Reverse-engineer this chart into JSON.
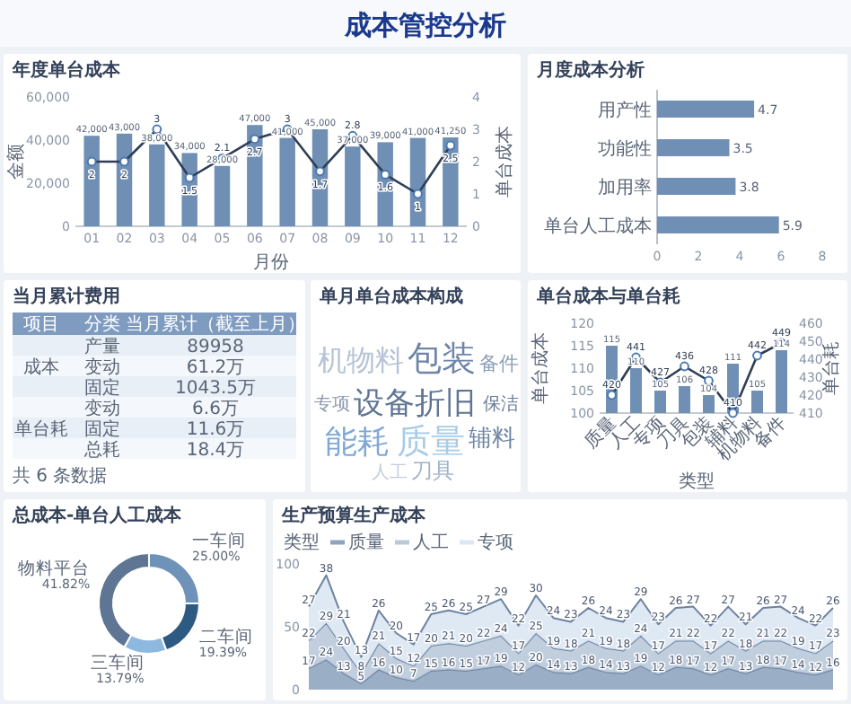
{
  "chart_data": [
    {
      "type": "bar",
      "title": "年度单台成本",
      "annotations": [
        "成本管控分析"
      ],
      "xlabel": "月份",
      "ylabel": "金额",
      "y2label": "单台成本",
      "categories": [
        "01",
        "02",
        "03",
        "04",
        "05",
        "06",
        "07",
        "08",
        "09",
        "10",
        "11",
        "12"
      ],
      "ylim": [
        0,
        60000
      ],
      "yticks": [
        0,
        {
          "value": 20000,
          "label": "20,000"
        },
        {
          "value": 40000,
          "label": "40,000"
        },
        {
          "value": 60000,
          "label": "60,000"
        }
      ],
      "y2lim": [
        0,
        4
      ],
      "y2ticks": [
        0,
        1,
        2,
        3,
        4
      ],
      "data_labels": true,
      "series": [
        {
          "type": "bar",
          "color": "#6f8fb5",
          "values": [
            42000,
            43000,
            38000,
            34000,
            28000,
            47000,
            41000,
            45000,
            37000,
            39000,
            41000,
            41250
          ],
          "value_labels": [
            "42,000",
            "43,000",
            "38,000",
            "34,000",
            "28,000",
            "47,000",
            "41,000",
            "45,000",
            "37,000",
            "39,000",
            "41,000",
            "41,250"
          ]
        },
        {
          "type": "line",
          "axis": "y2",
          "color": "#2f3e55",
          "marker": "circle",
          "values": [
            2,
            2,
            3,
            1.5,
            2.1,
            2.7,
            3,
            1.7,
            2.8,
            1.6,
            1,
            2.5
          ],
          "value_labels": [
            "2",
            "2",
            "3",
            "1.5",
            "2.1",
            "2.7",
            "3",
            "1.7",
            "2.8",
            "1.6",
            "1",
            "2.5"
          ]
        }
      ]
    },
    {
      "type": "bar",
      "orientation": "horizontal",
      "title": "月度成本分析",
      "categories": [
        "用产性",
        "功能性",
        "加用率",
        "单台人工成本"
      ],
      "values": [
        4.7,
        3.5,
        3.8,
        5.9
      ],
      "color": "#6f8fb5",
      "xlim": [
        0,
        8
      ],
      "xticks": [
        0,
        2,
        4,
        6,
        8
      ],
      "data_labels": true
    },
    {
      "type": "other",
      "title": "当月累计费用",
      "annotations": [
        "项目",
        "分类",
        "当月累计（截至上月）",
        "成本",
        "产量",
        "89958",
        "变动",
        "61.2万",
        "固定",
        "1043.5万",
        "单台耗",
        "变动",
        "6.6万",
        "固定",
        "11.6万",
        "总耗",
        "18.4万",
        "共 6 条数据"
      ]
    },
    {
      "type": "other",
      "title": "单月单台成本构成",
      "annotations": [
        "机物料",
        "包装",
        "备件",
        "专项",
        "设备折旧",
        "保洁",
        "能耗",
        "质量",
        "辅料",
        "人工",
        "刀具"
      ]
    },
    {
      "type": "bar",
      "title": "单台成本与单台耗",
      "xlabel": "类型",
      "ylabel": "单台成本",
      "y2label": "单台耗",
      "categories": [
        "质量",
        "人工",
        "专项",
        "刀具",
        "包装",
        "辅料",
        "机物料",
        "备件"
      ],
      "ylim": [
        100,
        120
      ],
      "yticks": [
        100,
        105,
        110,
        115,
        120
      ],
      "y2lim": [
        410,
        460
      ],
      "y2ticks": [
        410,
        420,
        430,
        440,
        450,
        460
      ],
      "data_labels": true,
      "series": [
        {
          "type": "bar",
          "color": "#6f8fb5",
          "values": [
            115,
            110,
            105,
            106,
            104,
            111,
            105,
            114
          ]
        },
        {
          "type": "line",
          "axis": "y2",
          "color": "#2f3e55",
          "marker": "circle",
          "values": [
            420,
            441,
            427,
            436,
            428,
            410,
            442,
            449
          ]
        }
      ]
    },
    {
      "type": "donut",
      "title": "总成本-单台人工成本",
      "categories": [
        "一车间",
        "二车间",
        "三车间",
        "物料平台"
      ],
      "values": [
        25,
        19.39,
        13.79,
        41.82
      ],
      "colors": [
        "#6f92b8",
        "#2d5a80",
        "#8db9e0",
        "#5f7594"
      ],
      "data_labels": true,
      "value_labels": [
        "25.00%",
        "19.39%",
        "13.79%",
        "41.82%"
      ]
    },
    {
      "type": "area",
      "title": "生产预算生产成本",
      "stacked": true,
      "legend": "top left",
      "legend_title": "类型",
      "categories": [
        null,
        null,
        null,
        null,
        null,
        null,
        null,
        null,
        null,
        null,
        null,
        null,
        null,
        null,
        null,
        null,
        null,
        null,
        null,
        null,
        null,
        null,
        null,
        null,
        null,
        null,
        null,
        null,
        null,
        null,
        null
      ],
      "ylim": [
        0,
        100
      ],
      "yticks": [
        0,
        50,
        100
      ],
      "data_labels": true,
      "series": [
        {
          "name": "质量",
          "color": "#8fa5bf",
          "values": [
            17,
            24,
            13,
            5,
            16,
            10,
            7,
            15,
            16,
            15,
            17,
            19,
            12,
            20,
            14,
            13,
            18,
            14,
            13,
            19,
            12,
            18,
            17,
            12,
            17,
            13,
            18,
            17,
            14,
            12,
            16
          ]
        },
        {
          "name": "人工",
          "color": "#b9c9da",
          "values": [
            22,
            29,
            20,
            8,
            21,
            15,
            12,
            20,
            21,
            20,
            22,
            24,
            17,
            25,
            19,
            18,
            21,
            19,
            18,
            24,
            17,
            21,
            22,
            17,
            22,
            18,
            21,
            22,
            19,
            17,
            23
          ]
        },
        {
          "name": "专项",
          "color": "#dce7f3",
          "values": [
            27,
            38,
            21,
            13,
            26,
            20,
            17,
            25,
            26,
            25,
            27,
            29,
            22,
            30,
            24,
            23,
            26,
            24,
            23,
            29,
            23,
            26,
            27,
            22,
            27,
            21,
            26,
            27,
            24,
            22,
            26
          ]
        }
      ]
    }
  ]
}
